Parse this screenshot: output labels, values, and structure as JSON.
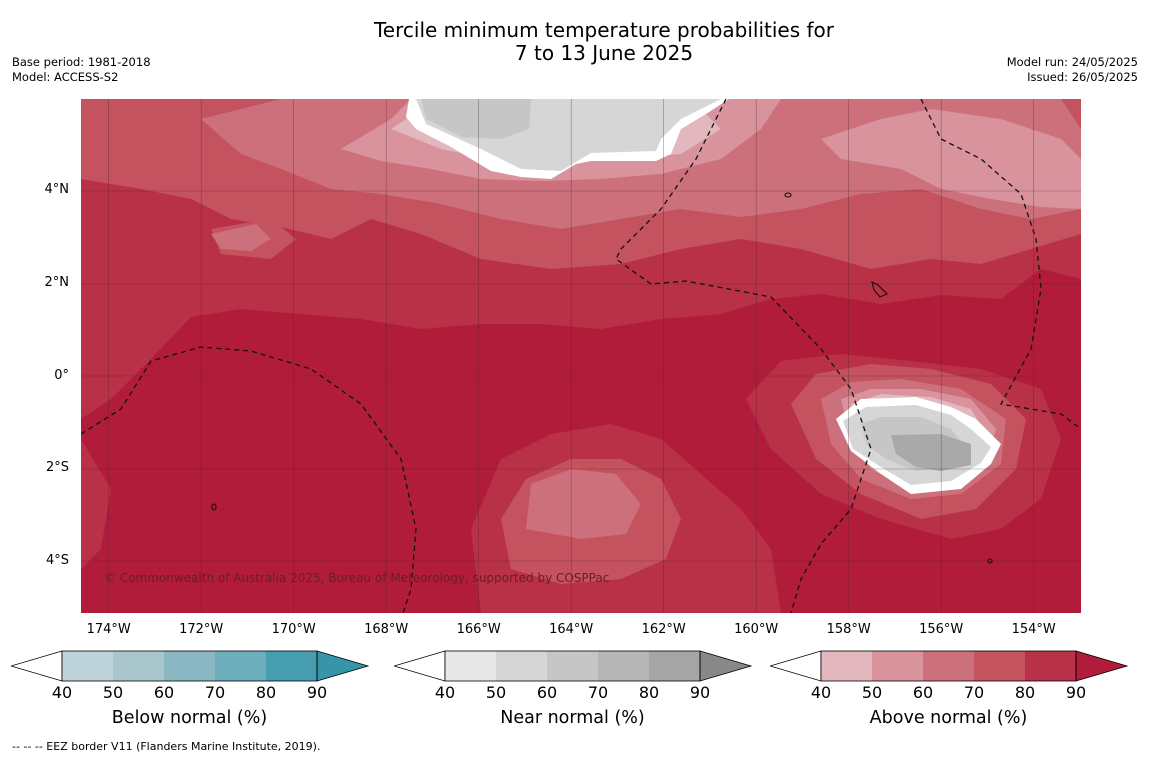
{
  "header": {
    "title_line1": "Tercile minimum temperature probabilities for",
    "title_line2": "7 to 13 June 2025",
    "base_period": "Base period: 1981-2018",
    "model": "Model: ACCESS-S2",
    "model_run": "Model run: 24/05/2025",
    "issued": "Issued: 26/05/2025"
  },
  "map": {
    "lat_labels": [
      "4°N",
      "2°N",
      "0°",
      "2°S",
      "4°S"
    ],
    "lon_labels": [
      "174°W",
      "172°W",
      "170°W",
      "168°W",
      "166°W",
      "164°W",
      "162°W",
      "160°W",
      "158°W",
      "156°W",
      "154°W"
    ],
    "copyright": "© Commonwealth of Australia 2025, Bureau of Meteorology, supported by COSPPac",
    "colors": {
      "above": [
        "#e2b7bd",
        "#d8939c",
        "#cc707c",
        "#c4525f",
        "#b93147",
        "#b01c3a"
      ],
      "near": [
        "#e8e8e8",
        "#d6d6d6",
        "#c6c6c6",
        "#b6b6b6",
        "#a5a5a5",
        "#888888"
      ],
      "below": [
        "#bed3d9",
        "#a8c6cb",
        "#8bb7c2",
        "#6caebb",
        "#479db0",
        "#3795aa"
      ]
    }
  },
  "legends": [
    {
      "label": "Below normal (%)",
      "ticks": [
        "40",
        "50",
        "60",
        "70",
        "80",
        "90"
      ]
    },
    {
      "label": "Near normal (%)",
      "ticks": [
        "40",
        "50",
        "60",
        "70",
        "80",
        "90"
      ]
    },
    {
      "label": "Above normal (%)",
      "ticks": [
        "40",
        "50",
        "60",
        "70",
        "80",
        "90"
      ]
    }
  ],
  "footer": {
    "eez_note": "--  --  -- EEZ border V11 (Flanders Marine Institute, 2019)."
  }
}
